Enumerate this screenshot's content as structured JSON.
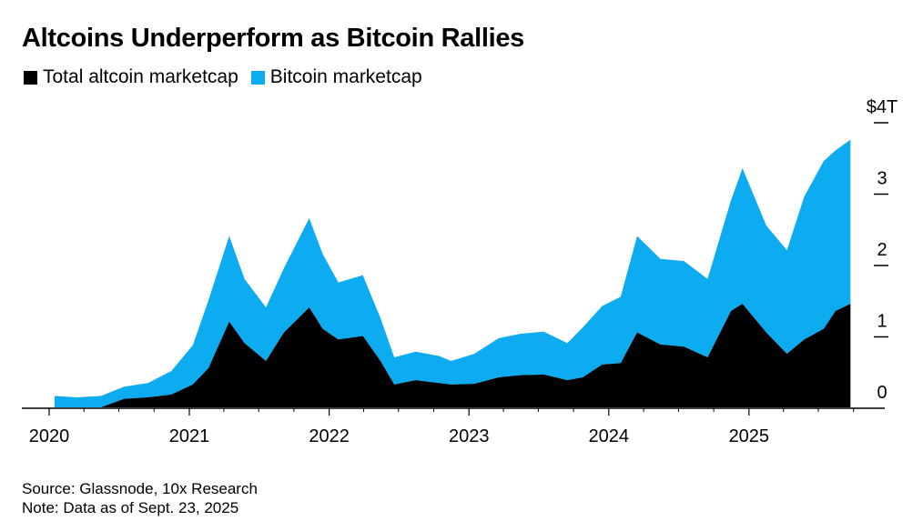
{
  "chart_data": {
    "type": "area",
    "title": "Altcoins Underperform as Bitcoin Rallies",
    "xlabel": "",
    "ylabel": "",
    "stacked": true,
    "y_unit": "$ trillions",
    "ylim": [
      0,
      4
    ],
    "xlim": [
      "2020-01-01",
      "2025-12-31"
    ],
    "x_tick_labels": [
      "2020",
      "2021",
      "2022",
      "2023",
      "2024",
      "2025"
    ],
    "y_tick_labels": [
      "0",
      "1",
      "2",
      "3",
      "$4T"
    ],
    "y_ticks": [
      0,
      1,
      2,
      3,
      4
    ],
    "legend_position": "top-left",
    "grid": false,
    "x": [
      "2020-01-15",
      "2020-03-15",
      "2020-05-15",
      "2020-07-15",
      "2020-09-15",
      "2020-11-15",
      "2021-01-10",
      "2021-02-20",
      "2021-04-15",
      "2021-05-25",
      "2021-07-20",
      "2021-09-05",
      "2021-11-10",
      "2021-12-15",
      "2022-01-25",
      "2022-03-30",
      "2022-05-15",
      "2022-06-20",
      "2022-08-15",
      "2022-10-15",
      "2022-11-15",
      "2023-01-15",
      "2023-03-20",
      "2023-05-15",
      "2023-07-15",
      "2023-09-15",
      "2023-10-25",
      "2023-12-15",
      "2024-02-01",
      "2024-03-15",
      "2024-05-15",
      "2024-07-15",
      "2024-09-15",
      "2024-11-15",
      "2024-12-15",
      "2025-02-15",
      "2025-04-10",
      "2025-05-25",
      "2025-07-15",
      "2025-08-15",
      "2025-09-23"
    ],
    "series": [
      {
        "name": "Total altcoin marketcap",
        "color": "#000000",
        "values": [
          0.0,
          0.0,
          0.0,
          0.12,
          0.14,
          0.18,
          0.32,
          0.55,
          1.2,
          0.9,
          0.65,
          1.05,
          1.4,
          1.1,
          0.95,
          1.0,
          0.65,
          0.32,
          0.38,
          0.34,
          0.32,
          0.33,
          0.42,
          0.45,
          0.46,
          0.38,
          0.42,
          0.6,
          0.62,
          1.05,
          0.88,
          0.85,
          0.7,
          1.35,
          1.45,
          1.05,
          0.75,
          0.95,
          1.1,
          1.35,
          1.45
        ]
      },
      {
        "name": "Bitcoin marketcap",
        "color": "#0dabf0",
        "values": [
          0.16,
          0.14,
          0.16,
          0.17,
          0.2,
          0.33,
          0.55,
          0.95,
          1.2,
          0.9,
          0.75,
          0.9,
          1.25,
          1.05,
          0.8,
          0.85,
          0.6,
          0.38,
          0.4,
          0.38,
          0.33,
          0.42,
          0.55,
          0.58,
          0.6,
          0.52,
          0.7,
          0.82,
          0.93,
          1.35,
          1.2,
          1.2,
          1.1,
          1.55,
          1.9,
          1.5,
          1.45,
          2.0,
          2.35,
          2.25,
          2.3
        ]
      }
    ]
  },
  "footer": {
    "source": "Source: Glassnode, 10x Research",
    "note": "Note: Data as of Sept. 23, 2025"
  }
}
